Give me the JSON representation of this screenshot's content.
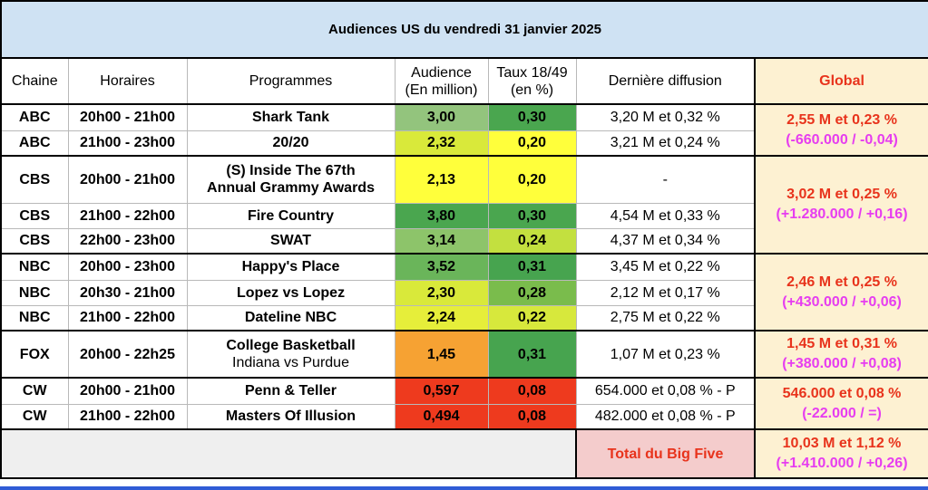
{
  "title": "Audiences US du vendredi 31 janvier 2025",
  "headers": {
    "chaine": "Chaine",
    "horaires": "Horaires",
    "programmes": "Programmes",
    "audience_l1": "Audience",
    "audience_l2": "(En million)",
    "taux_l1": "Taux 18/49",
    "taux_l2": "(en %)",
    "derniere": "Dernière diffusion",
    "global": "Global"
  },
  "rows": [
    {
      "chaine": "ABC",
      "horaires": "20h00 - 21h00",
      "programme": "Shark Tank",
      "programme_sub": "",
      "audience": "3,00",
      "taux": "0,30",
      "derniere": "3,20 M et 0,32 %",
      "audience_color": "#93c47d",
      "taux_color": "#4aa64f"
    },
    {
      "chaine": "ABC",
      "horaires": "21h00 - 23h00",
      "programme": "20/20",
      "programme_sub": "",
      "audience": "2,32",
      "taux": "0,20",
      "derniere": "3,21 M et 0,24 %",
      "audience_color": "#d9e93a",
      "taux_color": "#ffff3b"
    },
    {
      "chaine": "CBS",
      "horaires": "20h00 - 21h00",
      "programme": "(S) Inside The 67th",
      "programme_sub": "Annual Grammy Awards",
      "audience": "2,13",
      "taux": "0,20",
      "derniere": "-",
      "audience_color": "#ffff3b",
      "taux_color": "#ffff3b"
    },
    {
      "chaine": "CBS",
      "horaires": "21h00 - 22h00",
      "programme": "Fire Country",
      "programme_sub": "",
      "audience": "3,80",
      "taux": "0,30",
      "derniere": "4,54 M et 0,33 %",
      "audience_color": "#4aa64f",
      "taux_color": "#4aa64f"
    },
    {
      "chaine": "CBS",
      "horaires": "22h00 - 23h00",
      "programme": "SWAT",
      "programme_sub": "",
      "audience": "3,14",
      "taux": "0,24",
      "derniere": "4,37 M et 0,34 %",
      "audience_color": "#8dc46a",
      "taux_color": "#c3e03f"
    },
    {
      "chaine": "NBC",
      "horaires": "20h00 - 23h00",
      "programme": "Happy's Place",
      "programme_sub": "",
      "audience": "3,52",
      "taux": "0,31",
      "derniere": "3,45 M et 0,22 %",
      "audience_color": "#6ab55a",
      "taux_color": "#47a44f"
    },
    {
      "chaine": "NBC",
      "horaires": "20h30 - 21h00",
      "programme": "Lopez vs Lopez",
      "programme_sub": "",
      "audience": "2,30",
      "taux": "0,28",
      "derniere": "2,12 M et 0,17 %",
      "audience_color": "#d9e93a",
      "taux_color": "#7abc4c"
    },
    {
      "chaine": "NBC",
      "horaires": "21h00 - 22h00",
      "programme": "Dateline NBC",
      "programme_sub": "",
      "audience": "2,24",
      "taux": "0,22",
      "derniere": "2,75 M et 0,22 %",
      "audience_color": "#e6ee3a",
      "taux_color": "#d7e83c"
    },
    {
      "chaine": "FOX",
      "horaires": "20h00 - 22h25",
      "programme": "College Basketball",
      "programme_sub": "Indiana vs Purdue",
      "audience": "1,45",
      "taux": "0,31",
      "derniere": "1,07 M et 0,23 %",
      "audience_color": "#f6a233",
      "taux_color": "#47a44f"
    },
    {
      "chaine": "CW",
      "horaires": "20h00 - 21h00",
      "programme": "Penn & Teller",
      "programme_sub": "",
      "audience": "0,597",
      "taux": "0,08",
      "derniere": "654.000 et 0,08 % - P",
      "audience_color": "#ee3a1e",
      "taux_color": "#ee3a1e"
    },
    {
      "chaine": "CW",
      "horaires": "21h00 - 22h00",
      "programme": "Masters Of Illusion",
      "programme_sub": "",
      "audience": "0,494",
      "taux": "0,08",
      "derniere": "482.000 et 0,08 % - P",
      "audience_color": "#ee3a1e",
      "taux_color": "#ee3a1e"
    }
  ],
  "globals": {
    "abc": {
      "main": "2,55 M et 0,23 %",
      "sub": "(-660.000 / -0,04)"
    },
    "cbs": {
      "main": "3,02 M et 0,25 %",
      "sub": "(+1.280.000 / +0,16)"
    },
    "nbc": {
      "main": "2,46 M et 0,25 %",
      "sub": "(+430.000 / +0,06)"
    },
    "fox": {
      "main": "1,45 M et 0,31 %",
      "sub": "(+380.000 / +0,08)"
    },
    "cw": {
      "main": "546.000 et 0,08 %",
      "sub": "(-22.000 / =)"
    }
  },
  "total": {
    "label": "Total du Big Five",
    "main": "10,03 M et 1,12 %",
    "sub": "(+1.410.000 / +0,26)"
  }
}
